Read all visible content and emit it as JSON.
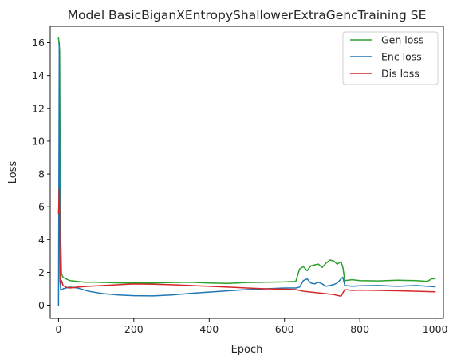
{
  "chart_data": {
    "type": "line",
    "title": "Model BasicBiganXEntropyShallowerExtraGencTraining SE",
    "xlabel": "Epoch",
    "ylabel": "Loss",
    "xlim": [
      -22,
      1022
    ],
    "ylim": [
      -0.8,
      17.0
    ],
    "xticks": [
      0,
      200,
      400,
      600,
      800,
      1000
    ],
    "yticks": [
      0,
      2,
      4,
      6,
      8,
      10,
      12,
      14,
      16
    ],
    "grid": false,
    "legend": "top-right",
    "series": [
      {
        "name": "Gen loss",
        "color": "#2ca02c",
        "x": [
          0,
          3,
          5,
          8,
          12,
          20,
          30,
          50,
          70,
          100,
          130,
          160,
          200,
          250,
          300,
          350,
          400,
          450,
          500,
          550,
          600,
          630,
          640,
          650,
          660,
          670,
          680,
          690,
          700,
          710,
          720,
          730,
          740,
          750,
          755,
          760,
          780,
          800,
          850,
          900,
          950,
          980,
          990,
          1000
        ],
        "y": [
          16.3,
          15.5,
          5.0,
          1.9,
          1.7,
          1.6,
          1.5,
          1.45,
          1.4,
          1.4,
          1.38,
          1.36,
          1.35,
          1.35,
          1.38,
          1.4,
          1.35,
          1.33,
          1.38,
          1.4,
          1.42,
          1.45,
          2.2,
          2.35,
          2.1,
          2.4,
          2.45,
          2.5,
          2.3,
          2.55,
          2.75,
          2.7,
          2.5,
          2.65,
          2.3,
          1.5,
          1.55,
          1.5,
          1.48,
          1.52,
          1.5,
          1.45,
          1.6,
          1.62
        ]
      },
      {
        "name": "Enc loss",
        "color": "#1f77b4",
        "x": [
          0,
          2,
          4,
          6,
          8,
          12,
          20,
          30,
          50,
          80,
          120,
          160,
          200,
          250,
          300,
          350,
          400,
          450,
          500,
          550,
          600,
          630,
          640,
          650,
          660,
          670,
          680,
          690,
          700,
          710,
          720,
          730,
          740,
          750,
          755,
          760,
          780,
          800,
          850,
          900,
          950,
          980,
          1000
        ],
        "y": [
          0.0,
          16.0,
          1.5,
          0.9,
          0.95,
          1.0,
          1.05,
          1.1,
          1.05,
          0.85,
          0.7,
          0.62,
          0.58,
          0.57,
          0.62,
          0.72,
          0.8,
          0.88,
          0.95,
          1.0,
          1.05,
          1.05,
          1.1,
          1.5,
          1.6,
          1.35,
          1.3,
          1.4,
          1.3,
          1.15,
          1.2,
          1.25,
          1.35,
          1.6,
          1.7,
          1.2,
          1.15,
          1.18,
          1.2,
          1.15,
          1.2,
          1.15,
          1.12
        ]
      },
      {
        "name": "Dis loss",
        "color": "#d62728",
        "x": [
          0,
          2,
          4,
          6,
          8,
          12,
          20,
          30,
          50,
          80,
          120,
          160,
          200,
          250,
          300,
          350,
          400,
          450,
          500,
          550,
          600,
          630,
          650,
          670,
          690,
          710,
          730,
          750,
          760,
          780,
          800,
          850,
          900,
          950,
          1000
        ],
        "y": [
          5.6,
          7.1,
          2.0,
          1.3,
          1.5,
          1.2,
          1.1,
          1.05,
          1.1,
          1.15,
          1.2,
          1.25,
          1.3,
          1.28,
          1.25,
          1.2,
          1.15,
          1.1,
          1.05,
          1.0,
          0.98,
          0.95,
          0.85,
          0.8,
          0.75,
          0.7,
          0.65,
          0.55,
          0.95,
          0.9,
          0.92,
          0.9,
          0.88,
          0.85,
          0.82
        ]
      }
    ]
  }
}
